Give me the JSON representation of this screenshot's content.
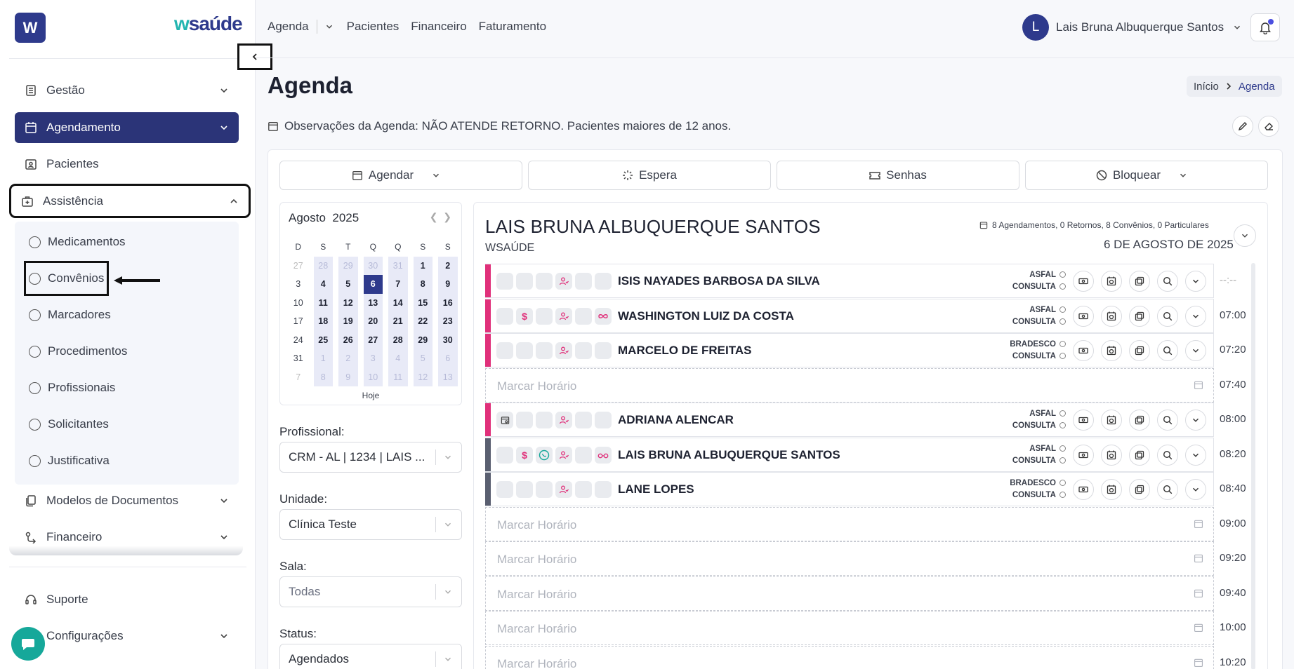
{
  "sidebar": {
    "logo_letter": "W",
    "brand": {
      "prefix": "w",
      "name": "saúde"
    },
    "items": [
      {
        "label": "Gestão",
        "icon": "ledger-icon"
      },
      {
        "label": "Agendamento",
        "icon": "calendar-icon"
      },
      {
        "label": "Pacientes",
        "icon": "patient-badge-icon"
      },
      {
        "label": "Assistência",
        "icon": "medical-case-icon"
      },
      {
        "label": "Modelos de Documentos",
        "icon": "documents-icon"
      },
      {
        "label": "Financeiro",
        "icon": "finance-icon"
      }
    ],
    "submenu": [
      "Medicamentos",
      "Convênios",
      "Marcadores",
      "Procedimentos",
      "Profissionais",
      "Solicitantes",
      "Justificativa"
    ],
    "footer": [
      {
        "label": "Suporte",
        "icon": "headset-icon"
      },
      {
        "label": "Configurações",
        "icon": "gear-icon"
      }
    ]
  },
  "topnav": {
    "items": [
      "Agenda",
      "Pacientes",
      "Financeiro",
      "Faturamento"
    ]
  },
  "user": {
    "initial": "L",
    "name": "Lais Bruna Albuquerque Santos"
  },
  "page": {
    "title": "Agenda",
    "breadcrumb": {
      "home": "Início",
      "current": "Agenda"
    },
    "observations": "Observações da Agenda: NÃO ATENDE RETORNO. Pacientes maiores de 12 anos."
  },
  "actions": [
    "Agendar",
    "Espera",
    "Senhas",
    "Bloquear"
  ],
  "calendar": {
    "month": "Agosto",
    "year": "2025",
    "weekdays": [
      "D",
      "S",
      "T",
      "Q",
      "Q",
      "S",
      "S"
    ],
    "weeks": [
      [
        "27",
        "28",
        "29",
        "30",
        "31",
        "1",
        "2"
      ],
      [
        "3",
        "4",
        "5",
        "6",
        "7",
        "8",
        "9"
      ],
      [
        "10",
        "11",
        "12",
        "13",
        "14",
        "15",
        "16"
      ],
      [
        "17",
        "18",
        "19",
        "20",
        "21",
        "22",
        "23"
      ],
      [
        "24",
        "25",
        "26",
        "27",
        "28",
        "29",
        "30"
      ],
      [
        "31",
        "1",
        "2",
        "3",
        "4",
        "5",
        "6"
      ],
      [
        "7",
        "8",
        "9",
        "10",
        "11",
        "12",
        "13"
      ]
    ],
    "selected": "6",
    "today_label": "Hoje"
  },
  "filters": {
    "profissional": {
      "label": "Profissional:",
      "value": "CRM - AL | 1234 | LAIS ..."
    },
    "unidade": {
      "label": "Unidade:",
      "value": "Clínica Teste"
    },
    "sala": {
      "label": "Sala:",
      "value": "Todas"
    },
    "status": {
      "label": "Status:",
      "value": "Agendados"
    }
  },
  "schedule": {
    "doctor": "LAIS BRUNA ALBUQUERQUE SANTOS",
    "org": "WSAÚDE",
    "stats": "8 Agendamentos, 0 Retornos, 8 Convênios, 0 Particulares",
    "date": "6 DE AGOSTO DE 2025",
    "free_label": "Marcar Horário",
    "slots": [
      {
        "kind": "appt",
        "time": "--:--",
        "name": "ISIS NAYADES BARBOSA DA SILVA",
        "insurance": "ASFAL",
        "type": "CONSULTA",
        "stripe": "#e0307a",
        "dollar": false,
        "whatsapp": false,
        "glasses": false,
        "calicon": false,
        "infinity": false
      },
      {
        "kind": "appt",
        "time": "07:00",
        "name": "WASHINGTON LUIZ DA COSTA",
        "insurance": "ASFAL",
        "type": "CONSULTA",
        "stripe": "#e0307a",
        "dollar": true,
        "whatsapp": false,
        "glasses": false,
        "calicon": false,
        "infinity": true
      },
      {
        "kind": "appt",
        "time": "07:20",
        "name": "MARCELO DE FREITAS",
        "insurance": "BRADESCO",
        "type": "CONSULTA",
        "stripe": "#e0307a",
        "dollar": false,
        "whatsapp": false,
        "glasses": false,
        "calicon": false,
        "infinity": false
      },
      {
        "kind": "free",
        "time": "07:40"
      },
      {
        "kind": "appt",
        "time": "08:00",
        "name": "ADRIANA ALENCAR",
        "insurance": "ASFAL",
        "type": "CONSULTA",
        "stripe": "#e0307a",
        "dollar": false,
        "whatsapp": false,
        "glasses": false,
        "calicon": true,
        "infinity": false
      },
      {
        "kind": "appt",
        "time": "08:20",
        "name": "LAIS BRUNA ALBUQUERQUE SANTOS",
        "insurance": "ASFAL",
        "type": "CONSULTA",
        "stripe": "#5a5f70",
        "dollar": true,
        "whatsapp": true,
        "glasses": true,
        "calicon": false,
        "infinity": false
      },
      {
        "kind": "appt",
        "time": "08:40",
        "name": "LANE LOPES",
        "insurance": "BRADESCO",
        "type": "CONSULTA",
        "stripe": "#5a5f70",
        "dollar": false,
        "whatsapp": false,
        "glasses": false,
        "calicon": false,
        "infinity": false
      },
      {
        "kind": "free",
        "time": "09:00"
      },
      {
        "kind": "free",
        "time": "09:20"
      },
      {
        "kind": "free",
        "time": "09:40"
      },
      {
        "kind": "free",
        "time": "10:00"
      },
      {
        "kind": "free",
        "time": "10:20"
      }
    ]
  },
  "colors": {
    "primary": "#2b3478",
    "accent": "#e0307a",
    "teal": "#16a89a"
  }
}
